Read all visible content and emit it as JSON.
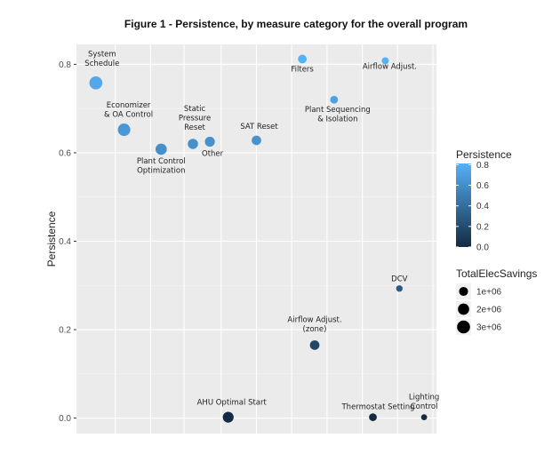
{
  "chart_data": {
    "type": "scatter",
    "title": "Figure 1 - Persistence, by measure category for the overall program",
    "xlabel": "",
    "ylabel": "Persistence",
    "ylim": [
      -0.035,
      0.845
    ],
    "yticks": [
      0.0,
      0.2,
      0.4,
      0.6,
      0.8
    ],
    "ytick_labels": [
      "0.0",
      "0.2",
      "0.4",
      "0.6",
      "0.8"
    ],
    "x_tick_labels_shown": false,
    "grid": true,
    "color_scale": {
      "low": "#132b43",
      "high": "#56b1f7",
      "min": 0.0,
      "max": 0.812
    },
    "points": [
      {
        "name": "System Schedule",
        "lines": [
          "System",
          "Schedule"
        ],
        "x": 0.55,
        "y": 0.758,
        "size": 3000000.0
      },
      {
        "name": "Economizer & OA Control",
        "lines": [
          "Economizer",
          "& OA Control"
        ],
        "x": 1.35,
        "y": 0.652,
        "size": 2700000.0
      },
      {
        "name": "Plant Control Optimization",
        "lines": [
          "Plant Control",
          "Optimization"
        ],
        "x": 2.4,
        "y": 0.608,
        "size": 2000000.0
      },
      {
        "name": "Static Pressure Reset",
        "lines": [
          "Static",
          "Pressure",
          "Reset"
        ],
        "x": 3.3,
        "y": 0.62,
        "size": 1500000.0
      },
      {
        "name": "Other",
        "lines": [
          "Other"
        ],
        "x": 3.78,
        "y": 0.625,
        "size": 1400000.0
      },
      {
        "name": "SAT Reset",
        "lines": [
          "SAT Reset"
        ],
        "x": 5.1,
        "y": 0.628,
        "size": 1200000.0
      },
      {
        "name": "Filters",
        "lines": [
          "Filters"
        ],
        "x": 6.4,
        "y": 0.812,
        "size": 900000.0
      },
      {
        "name": "Plant Sequencing & Isolation",
        "lines": [
          "Plant Sequencing",
          "& Isolation"
        ],
        "x": 7.3,
        "y": 0.72,
        "size": 600000.0
      },
      {
        "name": "Airflow Adjust.",
        "lines": [
          "Airflow Adjust."
        ],
        "x": 8.75,
        "y": 0.808,
        "size": 400000.0
      },
      {
        "name": "DCV",
        "lines": [
          "DCV"
        ],
        "x": 9.15,
        "y": 0.293,
        "size": 300000.0
      },
      {
        "name": "Airflow Adjust. (zone)",
        "lines": [
          "Airflow Adjust.",
          "(zone)"
        ],
        "x": 6.75,
        "y": 0.165,
        "size": 1200000.0
      },
      {
        "name": "AHU Optimal Start",
        "lines": [
          "AHU Optimal Start"
        ],
        "x": 4.3,
        "y": 0.002,
        "size": 1800000.0
      },
      {
        "name": "Thermostat Setting",
        "lines": [
          "Thermostat Setting"
        ],
        "x": 8.4,
        "y": 0.002,
        "size": 600000.0
      },
      {
        "name": "Lighting Control",
        "lines": [
          "Lighting",
          "Control"
        ],
        "x": 9.85,
        "y": 0.002,
        "size": 200000.0
      }
    ],
    "legend_color": {
      "title": "Persistence",
      "breaks": [
        0.0,
        0.2,
        0.4,
        0.6,
        0.8
      ],
      "labels": [
        "0.0",
        "0.2",
        "0.4",
        "0.6",
        "0.8"
      ]
    },
    "legend_size": {
      "title": "TotalElecSavings",
      "breaks": [
        1000000.0,
        2000000.0,
        3000000.0
      ],
      "labels": [
        "1e+06",
        "2e+06",
        "3e+06"
      ]
    },
    "legend_placement": "right"
  }
}
